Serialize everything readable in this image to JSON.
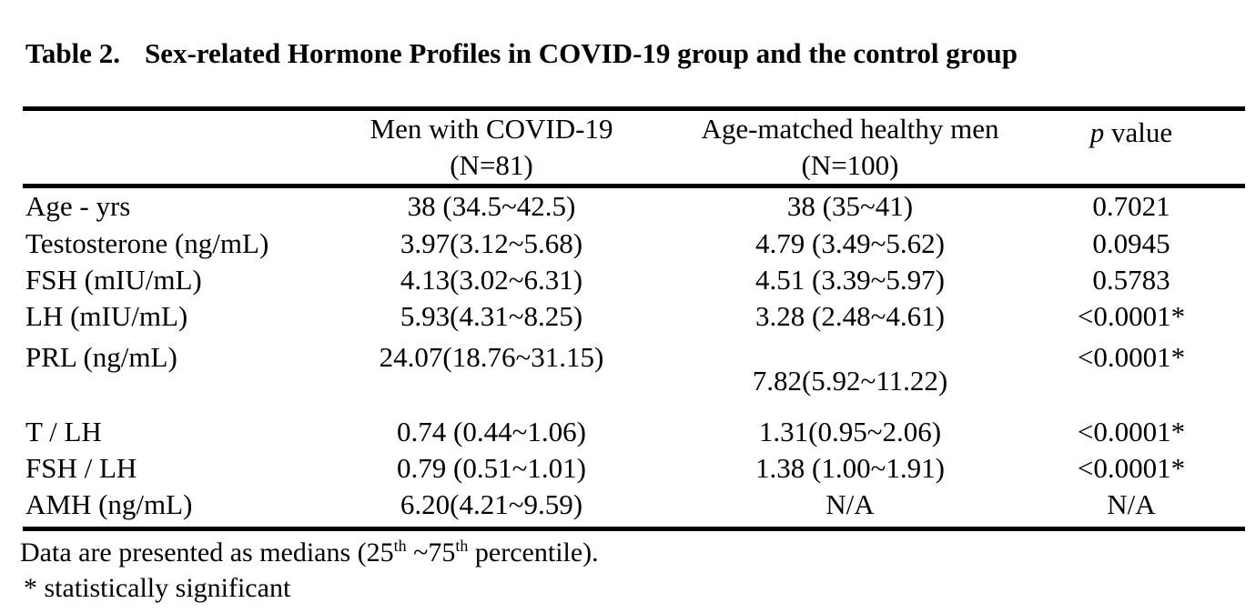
{
  "title": {
    "label": "Table 2.",
    "text": "Sex-related Hormone Profiles in COVID-19 group and the control group"
  },
  "table": {
    "header": {
      "covid_line1": "Men with COVID-19",
      "covid_line2": "(N=81)",
      "healthy_line1": "Age-matched healthy men",
      "healthy_line2": "(N=100)",
      "p_italic": "p",
      "p_rest": " value"
    },
    "rows": [
      {
        "label": "Age - yrs",
        "covid": "38 (34.5~42.5)",
        "healthy": "38 (35~41)",
        "p": "0.7021"
      },
      {
        "label": "Testosterone (ng/mL)",
        "covid": "3.97(3.12~5.68)",
        "healthy": "4.79 (3.49~5.62)",
        "p": "0.0945"
      },
      {
        "label": "FSH (mIU/mL)",
        "covid": "4.13(3.02~6.31)",
        "healthy": "4.51 (3.39~5.97)",
        "p": "0.5783"
      },
      {
        "label": "LH (mIU/mL)",
        "covid": "5.93(4.31~8.25)",
        "healthy": "3.28 (2.48~4.61)",
        "p": "<0.0001*"
      },
      {
        "label": "PRL (ng/mL)",
        "covid": "24.07(18.76~31.15)",
        "healthy": "7.82(5.92~11.22)",
        "p": "<0.0001*"
      },
      {
        "label": "T / LH",
        "covid": "0.74 (0.44~1.06)",
        "healthy": "1.31(0.95~2.06)",
        "p": "<0.0001*"
      },
      {
        "label": "FSH / LH",
        "covid": "0.79 (0.51~1.01)",
        "healthy": "1.38 (1.00~1.91)",
        "p": "<0.0001*"
      },
      {
        "label": "AMH (ng/mL)",
        "covid": "6.20(4.21~9.59)",
        "healthy": "N/A",
        "p": "N/A"
      }
    ]
  },
  "footnotes": {
    "line1": {
      "prefix": "Data are presented as medians (25",
      "sup1": "th",
      "mid": " ~75",
      "sup2": "th",
      "suffix": " percentile)."
    },
    "line2": "* statistically significant"
  },
  "colors": {
    "text": "#000000",
    "background": "#ffffff",
    "rule": "#000000"
  }
}
